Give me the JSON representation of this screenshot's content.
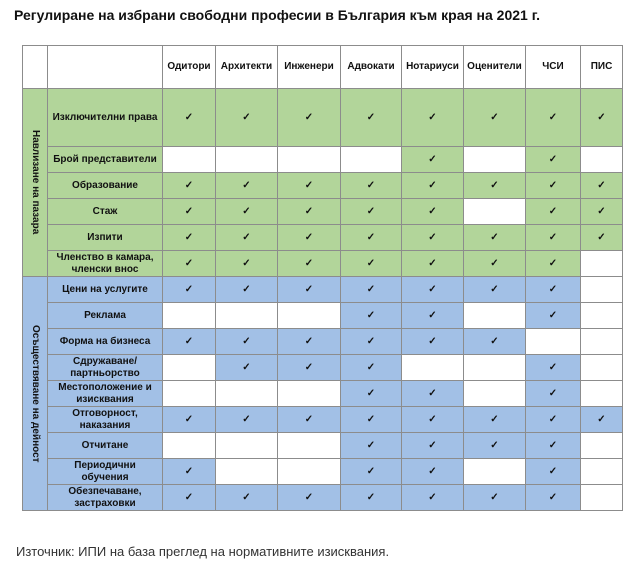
{
  "title": "Регулиране на избрани свободни професии в България към края на 2021 г.",
  "columns": [
    "Одитори",
    "Архитекти",
    "Инженери",
    "Адвокати",
    "Нотариуси",
    "Оценители",
    "ЧСИ",
    "ПИС"
  ],
  "groups": [
    {
      "label": "Навлизане на пазара",
      "rows": [
        {
          "label": "Изключителни права",
          "cells": [
            "✓",
            "✓",
            "✓",
            "✓",
            "✓",
            "✓",
            "✓",
            "✓"
          ]
        },
        {
          "label": "Брой представители",
          "cells": [
            null,
            null,
            null,
            null,
            "✓",
            null,
            "✓",
            null
          ]
        },
        {
          "label": "Образование",
          "cells": [
            "✓",
            "✓",
            "✓",
            "✓",
            "✓",
            "✓",
            "✓",
            "✓"
          ]
        },
        {
          "label": "Стаж",
          "cells": [
            "✓",
            "✓",
            "✓",
            "✓",
            "✓",
            null,
            "✓",
            "✓"
          ]
        },
        {
          "label": "Изпити",
          "cells": [
            "✓",
            "✓",
            "✓",
            "✓",
            "✓",
            "✓",
            "✓",
            "✓"
          ]
        },
        {
          "label": "Членство в камара, членски внос",
          "cells": [
            "✓",
            "✓",
            "✓",
            "✓",
            "✓",
            "✓",
            "✓",
            null
          ]
        }
      ]
    },
    {
      "label": "Осъществяване на дейност",
      "rows": [
        {
          "label": "Цени на услугите",
          "cells": [
            "✓",
            "✓",
            "✓",
            "✓",
            "✓",
            "✓",
            "✓",
            null
          ]
        },
        {
          "label": "Реклама",
          "cells": [
            null,
            null,
            null,
            "✓",
            "✓",
            null,
            "✓",
            null
          ]
        },
        {
          "label": "Форма на бизнеса",
          "cells": [
            "✓",
            "✓",
            "✓",
            "✓",
            "✓",
            "✓",
            null,
            null
          ]
        },
        {
          "label": "Сдружаване/ партньорство",
          "cells": [
            null,
            "✓",
            "✓",
            "✓",
            null,
            null,
            "✓",
            null
          ]
        },
        {
          "label": "Местоположение и изисквания",
          "cells": [
            null,
            null,
            null,
            "✓",
            "✓",
            null,
            "✓",
            null
          ]
        },
        {
          "label": "Отговорност, наказания",
          "cells": [
            "✓",
            "✓",
            "✓",
            "✓",
            "✓",
            "✓",
            "✓",
            "✓"
          ]
        },
        {
          "label": "Отчитане",
          "cells": [
            null,
            null,
            null,
            "✓",
            "✓",
            "✓",
            "✓",
            null
          ]
        },
        {
          "label": "Периодични обучения",
          "cells": [
            "✓",
            null,
            null,
            "✓",
            "✓",
            null,
            "✓",
            null
          ]
        },
        {
          "label": "Обезпечаване, застраховки",
          "cells": [
            "✓",
            "✓",
            "✓",
            "✓",
            "✓",
            "✓",
            "✓",
            null
          ]
        }
      ]
    }
  ],
  "source": "Източник: ИПИ на база преглед на нормативните изисквания."
}
